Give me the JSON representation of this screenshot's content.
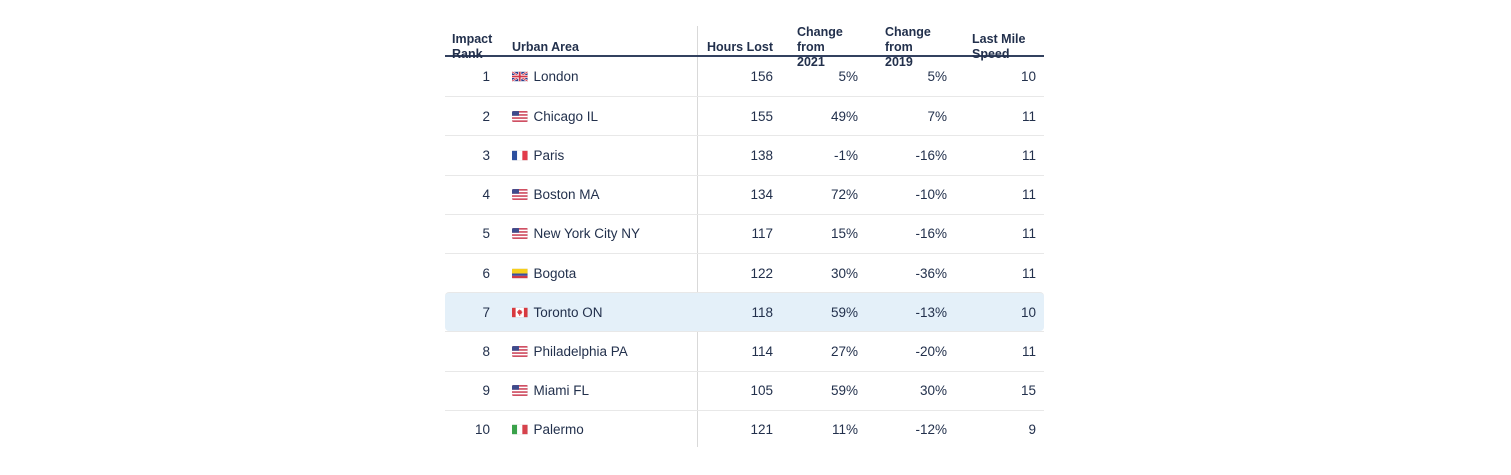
{
  "colors": {
    "text": "#22304c",
    "header_rule": "#33415f",
    "row_divider": "#e8e8e8",
    "column_divider": "#d9d9d9",
    "highlight_row": "#e4f0f9"
  },
  "table": {
    "columns": [
      {
        "id": "rank",
        "label": "Impact\nRank"
      },
      {
        "id": "urban_area",
        "label": "Urban Area"
      },
      {
        "id": "hours_lost",
        "label": "Hours Lost"
      },
      {
        "id": "change_2021",
        "label": "Change from\n2021"
      },
      {
        "id": "change_2019",
        "label": "Change from\n2019"
      },
      {
        "id": "last_mile",
        "label": "Last Mile\nSpeed"
      }
    ],
    "rows": [
      {
        "rank": "1",
        "flag": "gb",
        "city": "London",
        "hours_lost": "156",
        "change_2021": "5%",
        "change_2019": "5%",
        "last_mile": "10",
        "highlighted": false
      },
      {
        "rank": "2",
        "flag": "us",
        "city": "Chicago IL",
        "hours_lost": "155",
        "change_2021": "49%",
        "change_2019": "7%",
        "last_mile": "11",
        "highlighted": false
      },
      {
        "rank": "3",
        "flag": "fr",
        "city": "Paris",
        "hours_lost": "138",
        "change_2021": "-1%",
        "change_2019": "-16%",
        "last_mile": "11",
        "highlighted": false
      },
      {
        "rank": "4",
        "flag": "us",
        "city": "Boston MA",
        "hours_lost": "134",
        "change_2021": "72%",
        "change_2019": "-10%",
        "last_mile": "11",
        "highlighted": false
      },
      {
        "rank": "5",
        "flag": "us",
        "city": "New York City NY",
        "hours_lost": "117",
        "change_2021": "15%",
        "change_2019": "-16%",
        "last_mile": "11",
        "highlighted": false
      },
      {
        "rank": "6",
        "flag": "co",
        "city": "Bogota",
        "hours_lost": "122",
        "change_2021": "30%",
        "change_2019": "-36%",
        "last_mile": "11",
        "highlighted": false
      },
      {
        "rank": "7",
        "flag": "ca",
        "city": "Toronto ON",
        "hours_lost": "118",
        "change_2021": "59%",
        "change_2019": "-13%",
        "last_mile": "10",
        "highlighted": true
      },
      {
        "rank": "8",
        "flag": "us",
        "city": "Philadelphia PA",
        "hours_lost": "114",
        "change_2021": "27%",
        "change_2019": "-20%",
        "last_mile": "11",
        "highlighted": false
      },
      {
        "rank": "9",
        "flag": "us",
        "city": "Miami FL",
        "hours_lost": "105",
        "change_2021": "59%",
        "change_2019": "30%",
        "last_mile": "15",
        "highlighted": false
      },
      {
        "rank": "10",
        "flag": "it",
        "city": "Palermo",
        "hours_lost": "121",
        "change_2021": "11%",
        "change_2019": "-12%",
        "last_mile": "9",
        "highlighted": false
      }
    ]
  }
}
